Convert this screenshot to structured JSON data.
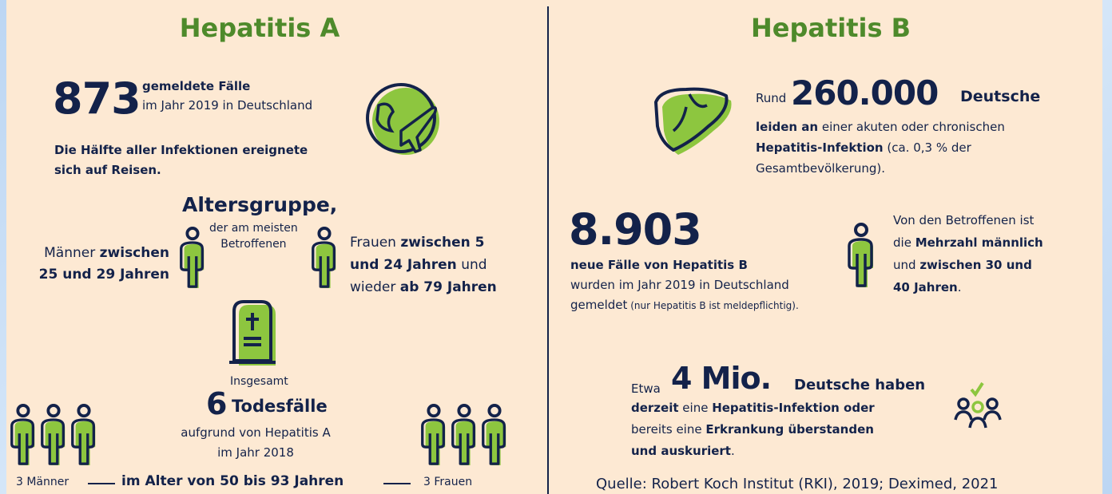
{
  "hepatitis_a": {
    "title": "Hepatitis A",
    "cases_number": "873",
    "cases_lines": [
      [
        {
          "text": "gemeldete Fälle",
          "bold": true
        }
      ],
      [
        {
          "text": "im Jahr 2019 in Deutschland"
        }
      ]
    ],
    "travel_lines": [
      [
        {
          "text": "Die Hälfte aller Infektionen ereignete",
          "bold": true
        }
      ],
      [
        {
          "text": "sich auf Reisen.",
          "bold": true
        }
      ]
    ],
    "age_group_title": "Altersgruppe,",
    "age_group_lines": [
      [
        {
          "text": "der am meisten"
        }
      ],
      [
        {
          "text": "Betroffenen"
        }
      ]
    ],
    "men_lines": [
      [
        {
          "text": "Männer "
        },
        {
          "text": "zwischen",
          "bold": true
        }
      ],
      [
        {
          "text": "25 und 29 Jahren",
          "bold": true
        }
      ]
    ],
    "women_lines": [
      [
        {
          "text": "Frauen "
        },
        {
          "text": "zwischen 5",
          "bold": true
        }
      ],
      [
        {
          "text": "und 24 Jahren",
          "bold": true
        },
        {
          "text": " und"
        }
      ],
      [
        {
          "text": "wieder "
        },
        {
          "text": "ab 79 Jahren",
          "bold": true
        }
      ]
    ],
    "deaths_intro": "Insgesamt",
    "deaths_number": "6",
    "deaths_label": "Todesfälle",
    "deaths_lines": [
      [
        {
          "text": "aufgrund von Hepatitis A"
        }
      ],
      [
        {
          "text": "im Jahr 2018"
        }
      ]
    ],
    "footer": {
      "men": "3 Männer",
      "age_range": "im Alter von 50 bis 93 Jahren",
      "women": "3 Frauen"
    }
  },
  "hepatitis_b": {
    "title": "Hepatitis B",
    "affected_intro": "Rund",
    "affected_number": "260.000",
    "affected_label": "Deutsche",
    "affected_lines": [
      [
        {
          "text": "leiden an",
          "bold": true
        },
        {
          "text": " einer akuten oder chronischen"
        }
      ],
      [
        {
          "text": "Hepatitis-Infektion",
          "bold": true
        },
        {
          "text": " (ca. 0,3 % der"
        }
      ],
      [
        {
          "text": "Gesamtbevölkerung)."
        }
      ]
    ],
    "new_cases_number": "8.903",
    "new_cases_lines": [
      [
        {
          "text": "neue Fälle von Hepatitis B",
          "bold": true
        }
      ],
      [
        {
          "text": "wurden im Jahr 2019 in Deutschland"
        }
      ],
      [
        {
          "text": "gemeldet"
        },
        {
          "text": " (nur Hepatitis B ist meldepflichtig).",
          "small": true
        }
      ]
    ],
    "gender_lines": [
      [
        {
          "text": "Von den Betroffenen ist"
        }
      ],
      [
        {
          "text": "die "
        },
        {
          "text": "Mehrzahl männlich",
          "bold": true
        }
      ],
      [
        {
          "text": "und "
        },
        {
          "text": "zwischen 30 und",
          "bold": true
        }
      ],
      [
        {
          "text": "40 Jahren",
          "bold": true
        },
        {
          "text": "."
        }
      ]
    ],
    "total_intro": "Etwa",
    "total_number": "4 Mio.",
    "total_label": "Deutsche haben",
    "total_lines": [
      [
        {
          "text": "derzeit",
          "bold": true
        },
        {
          "text": " eine "
        },
        {
          "text": "Hepatitis-Infektion oder",
          "bold": true
        }
      ],
      [
        {
          "text": "bereits eine "
        },
        {
          "text": "Erkrankung überstanden",
          "bold": true
        }
      ],
      [
        {
          "text": "und auskuriert",
          "bold": true
        },
        {
          "text": "."
        }
      ]
    ]
  },
  "source": "Quelle: Robert Koch Institut (RKI), 2019; Deximed, 2021"
}
